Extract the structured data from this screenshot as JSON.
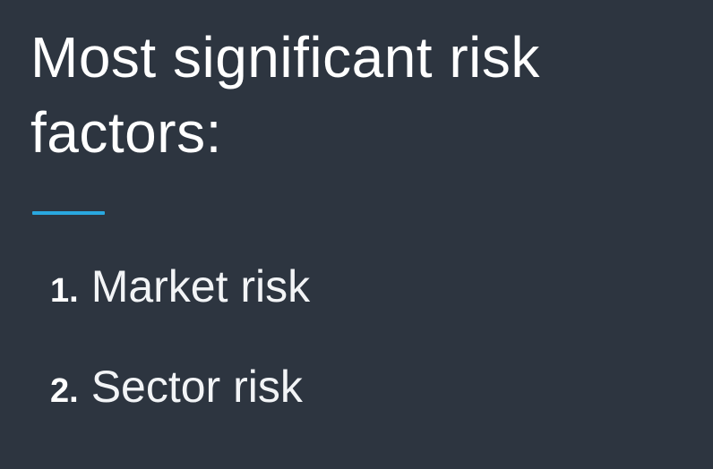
{
  "slide": {
    "title": "Most significant risk factors:",
    "accent_color": "#29a8e0",
    "background_color": "#2d3540",
    "items": [
      {
        "number": "1.",
        "label": "Market risk"
      },
      {
        "number": "2.",
        "label": "Sector risk"
      }
    ]
  }
}
